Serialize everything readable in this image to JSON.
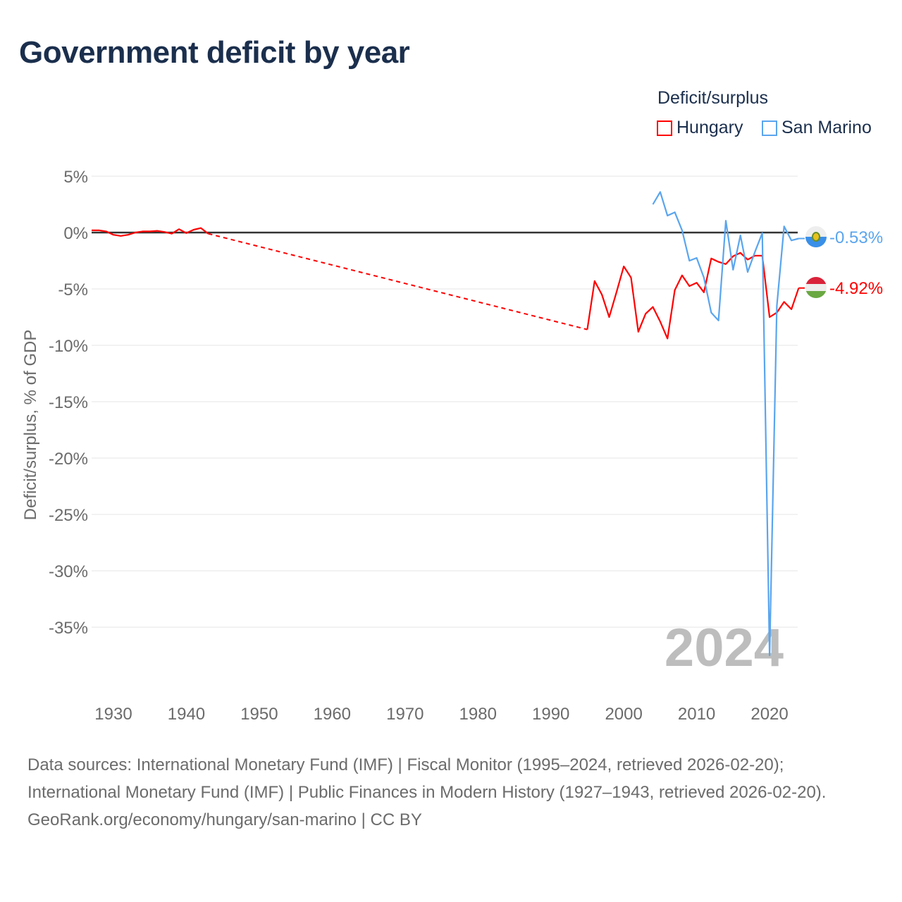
{
  "title": "Government deficit by year",
  "legend": {
    "title": "Deficit/surplus",
    "items": [
      {
        "name": "Hungary",
        "color": "#ff0000"
      },
      {
        "name": "San Marino",
        "color": "#5aa5ee"
      }
    ]
  },
  "year_label": "2024",
  "footer": {
    "sources": "Data sources: International Monetary Fund (IMF) | Fiscal Monitor (1995–2024, retrieved 2026-02-20); International Monetary Fund (IMF) | Public Finances in Modern History (1927–1943, retrieved 2026-02-20).",
    "credit": "GeoRank.org/economy/hungary/san-marino | CC BY"
  },
  "chart_data": {
    "type": "line",
    "title": "Government deficit by year",
    "xlabel": "",
    "ylabel": "Deficit/surplus, % of GDP",
    "xlim": [
      1927,
      2024
    ],
    "ylim": [
      -40,
      7.5
    ],
    "xticks": [
      1930,
      1940,
      1950,
      1960,
      1970,
      1980,
      1990,
      2000,
      2010,
      2020
    ],
    "yticks": [
      5,
      0,
      -5,
      -10,
      -15,
      -20,
      -25,
      -30,
      -35
    ],
    "ytick_labels": [
      "5%",
      "0%",
      "-5%",
      "-10%",
      "-15%",
      "-20%",
      "-25%",
      "-30%",
      "-35%"
    ],
    "grid": true,
    "legend_position": "top-right",
    "series": [
      {
        "name": "Hungary",
        "color": "#ff0000",
        "end_label": "-4.92%",
        "gap_dashed": [
          1943,
          1995
        ],
        "x": [
          1927,
          1928,
          1929,
          1930,
          1931,
          1932,
          1933,
          1934,
          1935,
          1936,
          1937,
          1938,
          1939,
          1940,
          1941,
          1942,
          1943,
          1995,
          1996,
          1997,
          1998,
          1999,
          2000,
          2001,
          2002,
          2003,
          2004,
          2005,
          2006,
          2007,
          2008,
          2009,
          2010,
          2011,
          2012,
          2013,
          2014,
          2015,
          2016,
          2017,
          2018,
          2019,
          2020,
          2021,
          2022,
          2023,
          2024
        ],
        "y": [
          0.2,
          0.2,
          0.1,
          -0.2,
          -0.3,
          -0.2,
          0,
          0.1,
          0.1,
          0.15,
          0.05,
          -0.1,
          0.3,
          -0.05,
          0.25,
          0.4,
          -0.1,
          -8.6,
          -4.3,
          -5.5,
          -7.5,
          -5.3,
          -3.0,
          -4.0,
          -8.8,
          -7.2,
          -6.6,
          -7.9,
          -9.4,
          -5.1,
          -3.8,
          -4.75,
          -4.45,
          -5.3,
          -2.3,
          -2.6,
          -2.8,
          -2.1,
          -1.8,
          -2.4,
          -2.05,
          -2.05,
          -7.5,
          -7.1,
          -6.15,
          -6.8,
          -4.92
        ]
      },
      {
        "name": "San Marino",
        "color": "#5aa5ee",
        "end_label": "-0.53%",
        "x": [
          2004,
          2005,
          2006,
          2007,
          2008,
          2009,
          2010,
          2011,
          2012,
          2013,
          2014,
          2015,
          2016,
          2017,
          2018,
          2019,
          2020,
          2021,
          2022,
          2023,
          2024
        ],
        "y": [
          2.5,
          3.6,
          1.5,
          1.8,
          0.2,
          -2.5,
          -2.25,
          -4.0,
          -7.1,
          -7.8,
          1.05,
          -3.3,
          -0.25,
          -3.5,
          -1.7,
          -0.05,
          -37.5,
          -6.5,
          0.55,
          -0.7,
          -0.53
        ]
      }
    ]
  }
}
